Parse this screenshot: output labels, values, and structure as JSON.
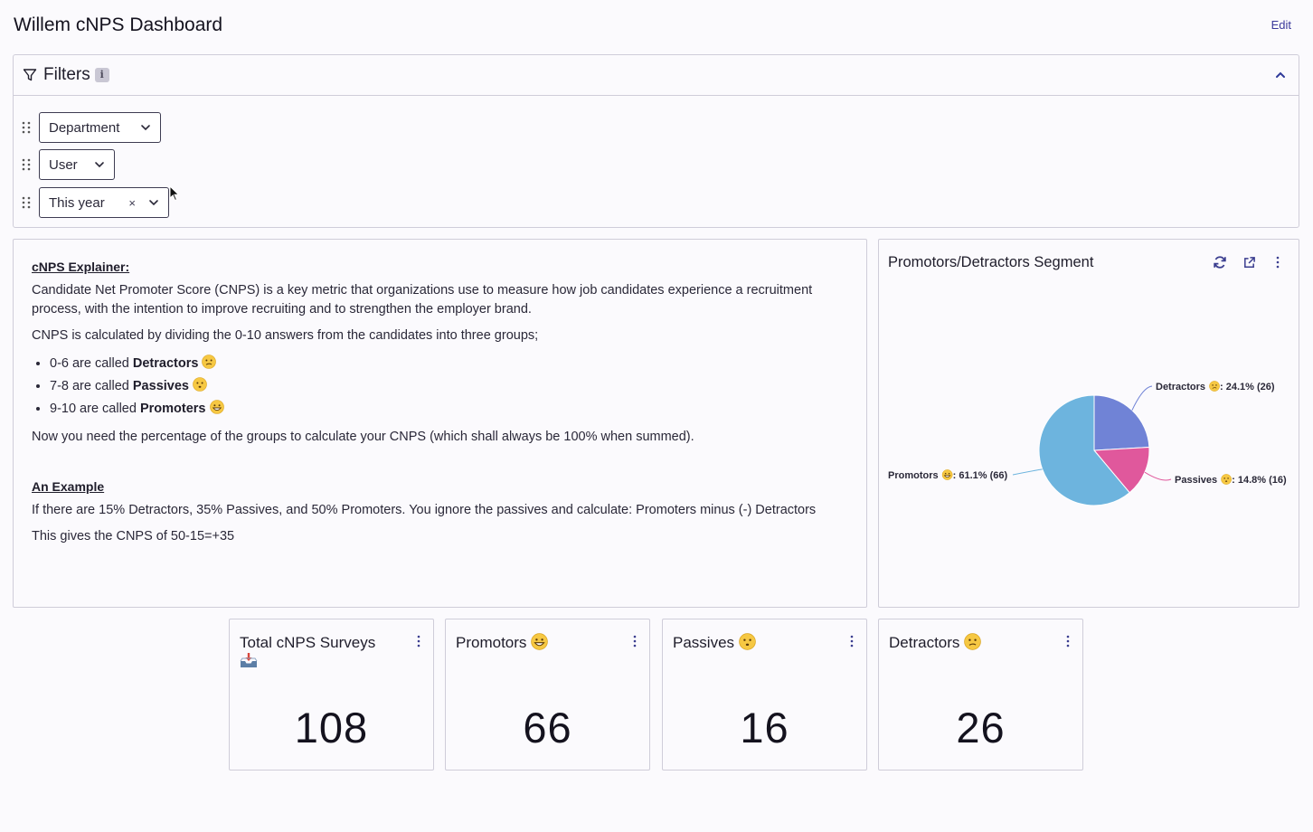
{
  "header": {
    "title": "Willem cNPS Dashboard",
    "edit_label": "Edit"
  },
  "filters": {
    "title": "Filters",
    "info_label": "i",
    "items": [
      {
        "label": "Department"
      },
      {
        "label": "User"
      },
      {
        "label": "This year",
        "clear_label": "×"
      }
    ]
  },
  "explainer": {
    "heading": "cNPS Explainer:",
    "para1": "Candidate Net Promoter Score (CNPS) is a key metric that organizations use to measure how job candidates experience a recruitment process, with the intention to improve recruiting and to strengthen the employer brand.",
    "para2": "CNPS is calculated by dividing the 0-10 answers from the candidates into three groups;",
    "bullets": [
      {
        "prefix": "0-6 are called ",
        "bold": "Detractors",
        "emoji": "confused-face"
      },
      {
        "prefix": "7-8 are called ",
        "bold": "Passives",
        "emoji": "neutral-face"
      },
      {
        "prefix": "9-10 are called ",
        "bold": "Promoters",
        "emoji": "grinning-face"
      }
    ],
    "para3": "Now you need the percentage of the groups to calculate your CNPS (which shall always be 100% when summed).",
    "example_heading": "An Example",
    "para4": "If there are 15% Detractors, 35% Passives, and 50% Promoters. You ignore the passives and calculate: Promoters minus (-) Detractors",
    "para5": "This gives the CNPS of 50-15=+35"
  },
  "pie_card": {
    "title": "Promotors/Detractors Segment"
  },
  "chart_data": {
    "type": "pie",
    "slices": [
      {
        "name": "Detractors",
        "percent": 24.1,
        "count": 26,
        "label": ": 24.1% (26)",
        "color": "#7083d6"
      },
      {
        "name": "Passives",
        "percent": 14.8,
        "count": 16,
        "label": ": 14.8% (16)",
        "color": "#e0589c"
      },
      {
        "name": "Promotors",
        "percent": 61.1,
        "count": 66,
        "label": ": 61.1% (66)",
        "color": "#6db4de"
      }
    ]
  },
  "stats": [
    {
      "title": "Total cNPS Surveys",
      "value": "108",
      "icon": "inbox-tray-icon"
    },
    {
      "title": "Promotors",
      "value": "66",
      "icon": "grinning-face"
    },
    {
      "title": "Passives",
      "value": "16",
      "icon": "neutral-face"
    },
    {
      "title": "Detractors",
      "value": "26",
      "icon": "confused-face"
    }
  ]
}
